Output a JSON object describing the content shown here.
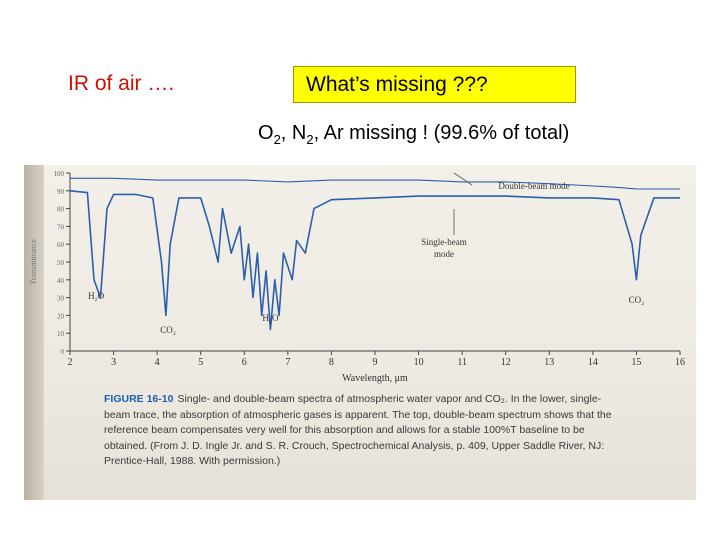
{
  "slide": {
    "title_left": "IR of air ….",
    "question": "What’s missing ???",
    "answer_parts": [
      "O",
      "2",
      ", N",
      "2",
      ", Ar missing ! (99.6% of total)"
    ]
  },
  "figure": {
    "caption_label": "FIGURE 16-10",
    "caption_text": "Single- and double-beam spectra of atmospheric water vapor and CO₂. In the lower, single-beam trace, the absorption of atmospheric gases is apparent. The top, double-beam spectrum shows that the reference beam compensates very well for this absorption and allows for a stable 100%T baseline to be obtained. (From J. D. Ingle Jr. and S. R. Crouch, Spectrochemical Analysis, p. 409, Upper Saddle River, NJ: Prentice-Hall, 1988. With permission.)",
    "annotations": {
      "double_beam": "Double-beam mode",
      "single_beam_1": "Single-beam",
      "single_beam_2": "mode",
      "h2o_1": "H₂O",
      "h2o_2": "H₂O",
      "co2_1": "CO₂",
      "co2_2": "CO₂"
    },
    "colors": {
      "trace": "#2a5fae",
      "axis": "#444444",
      "caption_label": "#1b5fb0"
    }
  },
  "chart_data": {
    "type": "line",
    "title": "",
    "xlabel": "Wavelength, μm",
    "ylabel": "Transmittance",
    "xlim": [
      2,
      16
    ],
    "ylim": [
      0,
      100
    ],
    "x_ticks": [
      "2",
      "3",
      "4",
      "5",
      "6",
      "7",
      "8",
      "9",
      "10",
      "11",
      "12",
      "13",
      "14",
      "15",
      "16"
    ],
    "y_ticks": [
      "0",
      "10",
      "20",
      "30",
      "40",
      "50",
      "60",
      "70",
      "80",
      "90",
      "100"
    ],
    "series": [
      {
        "name": "Double-beam mode",
        "points": [
          [
            2,
            97
          ],
          [
            3,
            97
          ],
          [
            4,
            96
          ],
          [
            5,
            96
          ],
          [
            6,
            96
          ],
          [
            7,
            95
          ],
          [
            8,
            96
          ],
          [
            9,
            96
          ],
          [
            10,
            96
          ],
          [
            11,
            95
          ],
          [
            12,
            95
          ],
          [
            13,
            94
          ],
          [
            13.8,
            93
          ],
          [
            14.5,
            92
          ],
          [
            15,
            91
          ],
          [
            16,
            91
          ]
        ]
      },
      {
        "name": "Single-beam mode",
        "points": [
          [
            2,
            90
          ],
          [
            2.4,
            89
          ],
          [
            2.55,
            40
          ],
          [
            2.7,
            30
          ],
          [
            2.85,
            80
          ],
          [
            3,
            88
          ],
          [
            3.5,
            88
          ],
          [
            3.9,
            86
          ],
          [
            4.1,
            50
          ],
          [
            4.2,
            20
          ],
          [
            4.3,
            60
          ],
          [
            4.5,
            86
          ],
          [
            5,
            86
          ],
          [
            5.2,
            70
          ],
          [
            5.4,
            50
          ],
          [
            5.5,
            80
          ],
          [
            5.7,
            55
          ],
          [
            5.9,
            70
          ],
          [
            6.0,
            40
          ],
          [
            6.1,
            60
          ],
          [
            6.2,
            30
          ],
          [
            6.3,
            55
          ],
          [
            6.4,
            20
          ],
          [
            6.5,
            45
          ],
          [
            6.6,
            12
          ],
          [
            6.7,
            40
          ],
          [
            6.8,
            20
          ],
          [
            6.9,
            55
          ],
          [
            7.1,
            40
          ],
          [
            7.2,
            62
          ],
          [
            7.4,
            55
          ],
          [
            7.6,
            80
          ],
          [
            8,
            85
          ],
          [
            9,
            86
          ],
          [
            10,
            87
          ],
          [
            11,
            87
          ],
          [
            12,
            87
          ],
          [
            13,
            86
          ],
          [
            14,
            86
          ],
          [
            14.6,
            85
          ],
          [
            14.9,
            60
          ],
          [
            15,
            40
          ],
          [
            15.1,
            65
          ],
          [
            15.4,
            86
          ],
          [
            16,
            86
          ]
        ]
      }
    ]
  }
}
